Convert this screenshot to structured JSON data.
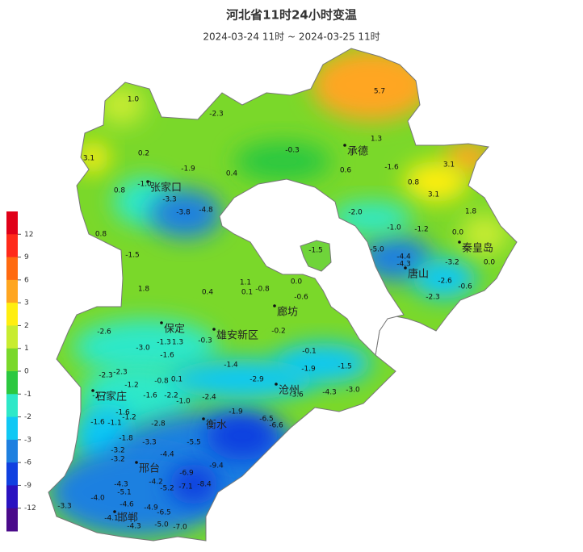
{
  "title": "河北省11时24小时变温",
  "subtitle": "2024-03-24 11时 ~ 2024-03-25 11时",
  "legend": {
    "ticks": [
      12,
      9,
      6,
      3,
      2,
      1,
      0,
      -1,
      -2,
      -3,
      -6,
      -9,
      -12
    ],
    "colors": [
      "#e00018",
      "#ff2a1a",
      "#ff6a10",
      "#ffa620",
      "#ffee10",
      "#c8ec30",
      "#7ad82a",
      "#2cc840",
      "#2ee8c8",
      "#10c8f4",
      "#1e80e0",
      "#1040e0",
      "#2a12c0",
      "#4a0a8a"
    ]
  },
  "cities": [
    "张家口",
    "承德",
    "秦皇岛",
    "唐山",
    "廊坊",
    "保定",
    "雄安新区",
    "沧州",
    "石家庄",
    "衡水",
    "邢台",
    "邯郸"
  ],
  "stations": {
    "values": [
      5.7,
      1.0,
      -2.3,
      1.3,
      -0.3,
      0.2,
      3.1,
      -1.6,
      3.1,
      -1.9,
      0.4,
      0.6,
      0.8,
      0.8,
      -1.0,
      3.1,
      -3.3,
      -3.8,
      -4.8,
      1.8,
      -2.0,
      -1.0,
      -1.2,
      0.0,
      0.8,
      -1.5,
      -5.0,
      -3.2,
      0.0,
      -1.5,
      -4.4,
      -4.3,
      -2.6,
      -0.6,
      -2.3,
      1.8,
      0.4,
      1.1,
      0.1,
      -0.8,
      0.0,
      -0.6,
      -2.6,
      -3.0,
      -1.3,
      1.3,
      -1.6,
      -0.3,
      -0.2,
      -0.1,
      -1.9,
      -1.5,
      -2.3,
      -2.3,
      -1.2,
      -0.8,
      0.1,
      -1.4,
      -2.9,
      -4.3,
      -3.0,
      -1.7,
      -1.6,
      -2.2,
      -1.0,
      -2.4,
      -3.6,
      -1.6,
      -1.2,
      -1.6,
      -1.1,
      -2.8,
      -1.9,
      -6.5,
      -6.6,
      -1.8,
      -3.3,
      -3.2,
      -3.2,
      -4.4,
      -5.5,
      -6.9,
      -9.4,
      -8.4,
      -4.3,
      -5.1,
      -4.2,
      -5.2,
      -7.1,
      -3.3,
      -4.0,
      -4.6,
      -4.9,
      -6.5,
      -4.1,
      -4.3,
      -5.0,
      -7.0
    ],
    "value_labels": [
      "5.7",
      "1.0",
      "-2.3",
      "1.3",
      "-0.3",
      "0.2",
      "3.1",
      "-1.6",
      "3.1",
      "-1.9",
      "0.4",
      "0.6",
      "0.8",
      "0.8",
      "-1.0",
      "3.1",
      "-3.3",
      "-3.8",
      "-4.8",
      "1.8",
      "-2.0",
      "-1.0",
      "-1.2",
      "0.0",
      "0.8",
      "-1.5",
      "-5.0",
      "-3.2",
      "0.0",
      "-1.5",
      "-4.4",
      "-4.3",
      "-2.6",
      "-0.6",
      "-2.3",
      "1.8",
      "0.4",
      "1.1",
      "0.1",
      "-0.8",
      "0.0",
      "-0.6",
      "-2.6",
      "-3.0",
      "-1.3",
      "1.3",
      "-1.6",
      "-0.3",
      "-0.2",
      "-0.1",
      "-1.9",
      "-1.5",
      "-2.3",
      "-2.3",
      "-1.2",
      "-0.8",
      "0.1",
      "-1.4",
      "-2.9",
      "-4.3",
      "-3.0",
      "-1.7",
      "-1.6",
      "-2.2",
      "-1.0",
      "-2.4",
      "-3.6",
      "-1.6",
      "-1.2",
      "-1.6",
      "-1.1",
      "-2.8",
      "-1.9",
      "-6.5",
      "-6.6",
      "-1.8",
      "-3.3",
      "-3.2",
      "-3.2",
      "-4.4",
      "-5.5",
      "-6.9",
      "-9.4",
      "-8.4",
      "-4.3",
      "-5.1",
      "-4.2",
      "-5.2",
      "-7.1",
      "-3.3",
      "-4.0",
      "-4.6",
      "-4.9",
      "-6.5",
      "-4.1",
      "-4.3",
      "-5.0",
      "-7.0"
    ]
  }
}
